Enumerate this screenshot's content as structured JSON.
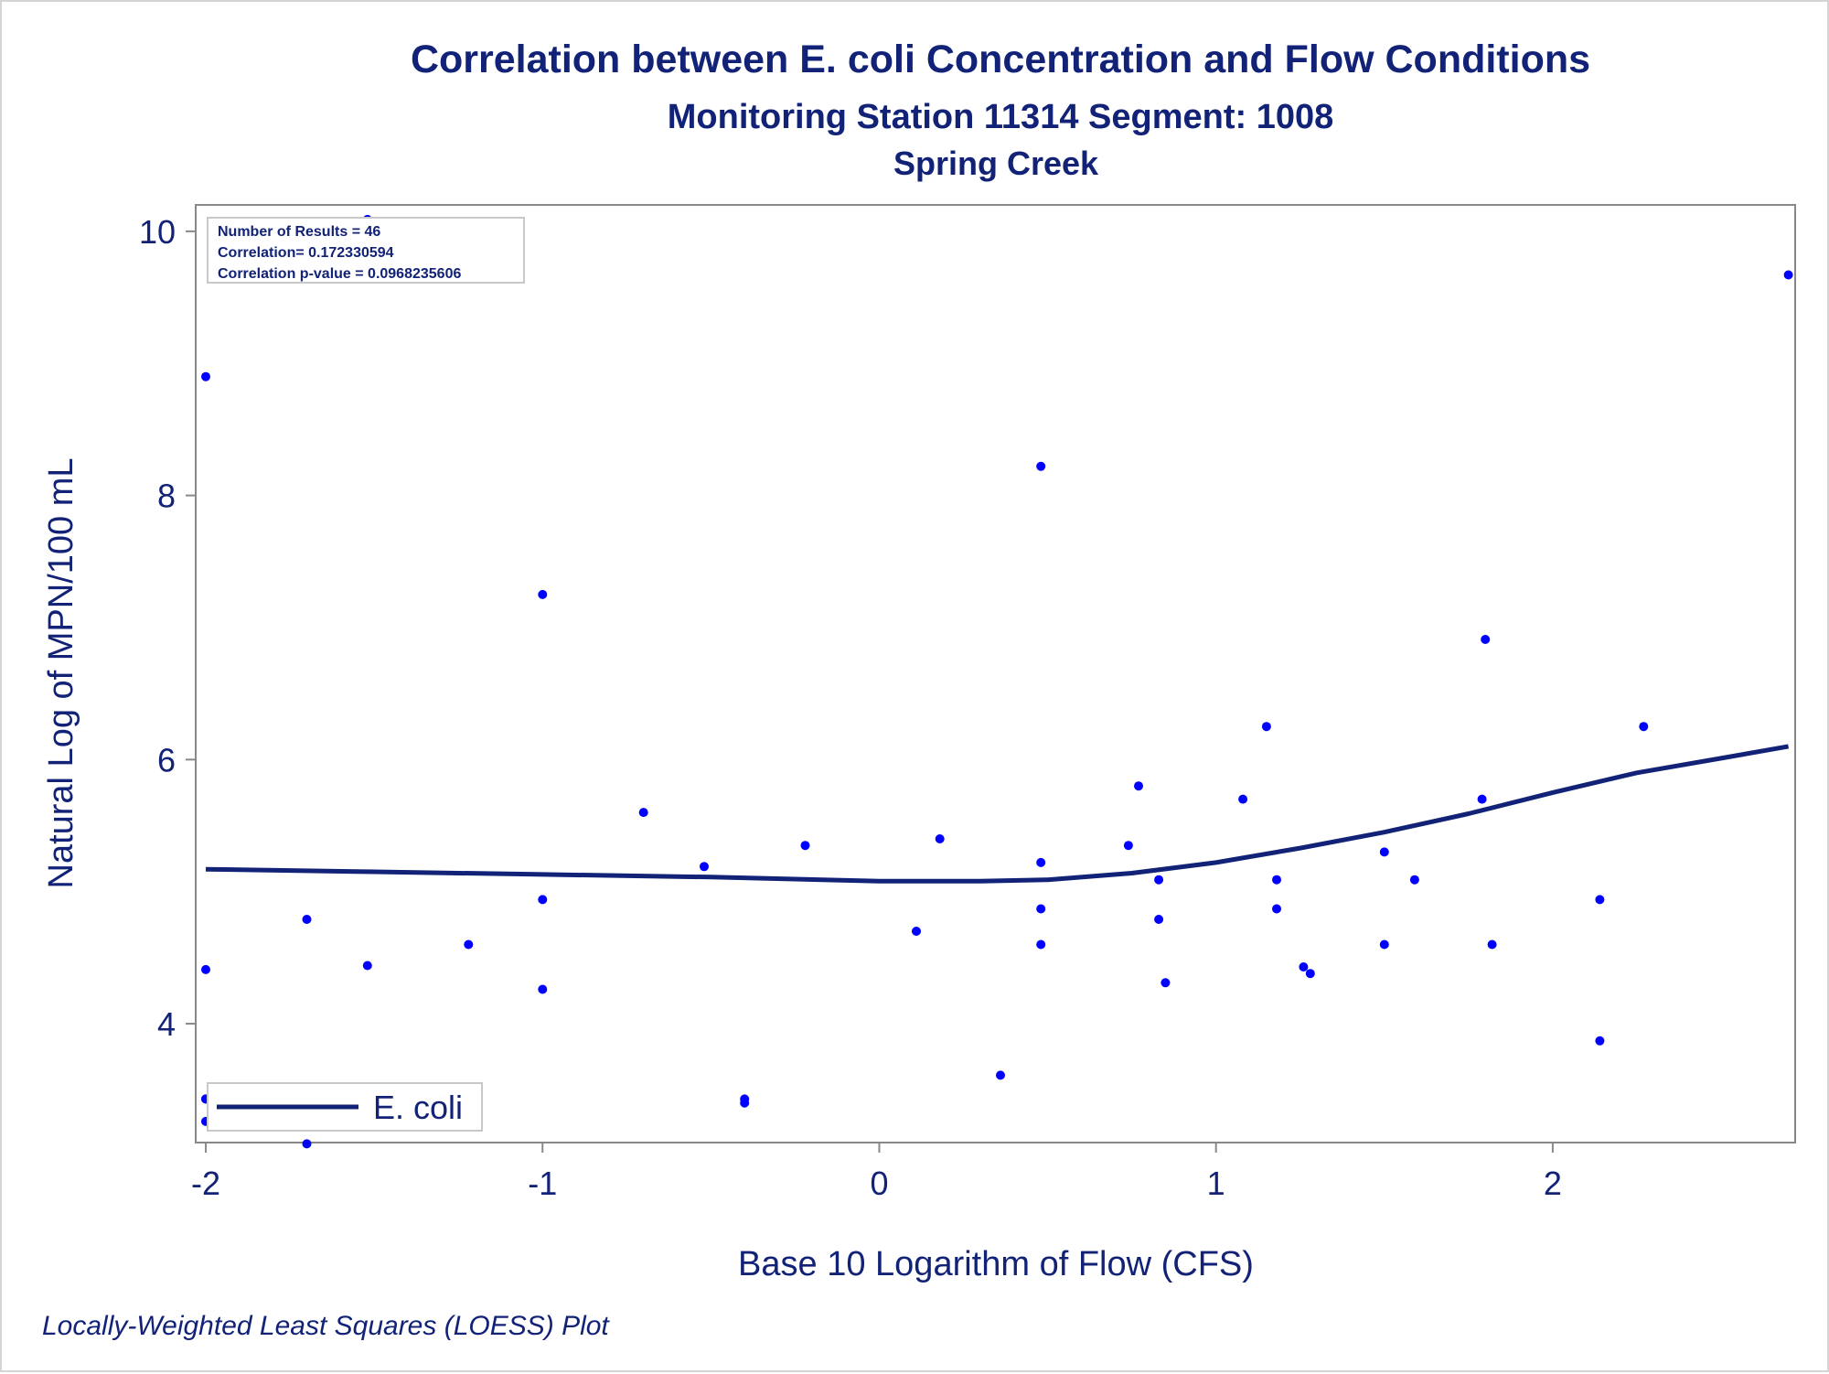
{
  "chart_data": {
    "type": "scatter",
    "title": "Correlation between E. coli Concentration and Flow Conditions",
    "subtitle": "Monitoring Station 11314 Segment: 1008",
    "subtitle2": "Spring Creek",
    "xlabel": "Base 10 Logarithm of Flow (CFS)",
    "ylabel": "Natural Log of MPN/100 mL",
    "footnote": "Locally-Weighted Least Squares (LOESS) Plot",
    "xlim": [
      -2.03,
      2.72
    ],
    "ylim": [
      3.1,
      10.2
    ],
    "x_ticks": [
      -2,
      -1,
      0,
      1,
      2
    ],
    "x_tick_labels": [
      "-2",
      "-1",
      "0",
      "1",
      "2"
    ],
    "y_ticks": [
      4,
      6,
      8,
      10
    ],
    "y_tick_labels": [
      "4",
      "6",
      "8",
      "10"
    ],
    "grid": false,
    "legend_position": "bottom-left",
    "stats_position": "top-left",
    "stats": [
      "Number of Results = 46",
      "Correlation= 0.172330594",
      "Correlation p-value = 0.0968235606"
    ],
    "colors": {
      "points": "#0000ff",
      "line": "#112277",
      "text": "#112277",
      "frame": "#888888"
    },
    "series": [
      {
        "kind": "scatter",
        "points": [
          [
            -2.0,
            8.9
          ],
          [
            -2.0,
            4.41
          ],
          [
            -2.0,
            3.43
          ],
          [
            -2.0,
            3.26
          ],
          [
            -1.7,
            4.79
          ],
          [
            -1.7,
            3.09
          ],
          [
            -1.52,
            10.09
          ],
          [
            -1.52,
            4.44
          ],
          [
            -1.22,
            4.6
          ],
          [
            -1.0,
            7.25
          ],
          [
            -1.0,
            4.94
          ],
          [
            -1.0,
            4.26
          ],
          [
            -0.7,
            5.6
          ],
          [
            -0.52,
            5.19
          ],
          [
            -0.4,
            3.43
          ],
          [
            -0.4,
            3.4
          ],
          [
            -0.22,
            5.35
          ],
          [
            0.11,
            4.7
          ],
          [
            0.18,
            5.4
          ],
          [
            0.36,
            3.61
          ],
          [
            0.48,
            8.22
          ],
          [
            0.48,
            5.22
          ],
          [
            0.48,
            4.87
          ],
          [
            0.48,
            4.6
          ],
          [
            0.74,
            5.35
          ],
          [
            0.77,
            5.8
          ],
          [
            0.83,
            5.09
          ],
          [
            0.83,
            4.79
          ],
          [
            0.85,
            4.31
          ],
          [
            1.08,
            5.7
          ],
          [
            1.15,
            6.25
          ],
          [
            1.18,
            5.09
          ],
          [
            1.18,
            4.87
          ],
          [
            1.26,
            4.43
          ],
          [
            1.28,
            4.38
          ],
          [
            1.5,
            5.3
          ],
          [
            1.5,
            4.6
          ],
          [
            1.59,
            5.09
          ],
          [
            1.79,
            5.7
          ],
          [
            1.8,
            6.91
          ],
          [
            1.82,
            4.6
          ],
          [
            2.14,
            4.94
          ],
          [
            2.14,
            3.87
          ],
          [
            2.27,
            6.25
          ],
          [
            2.7,
            9.67
          ],
          [
            -2.0,
            3.43
          ]
        ]
      },
      {
        "kind": "line",
        "name": "E. coli",
        "points": [
          [
            -2.0,
            5.17
          ],
          [
            -1.5,
            5.15
          ],
          [
            -1.0,
            5.13
          ],
          [
            -0.5,
            5.11
          ],
          [
            0.0,
            5.08
          ],
          [
            0.3,
            5.08
          ],
          [
            0.5,
            5.09
          ],
          [
            0.75,
            5.14
          ],
          [
            1.0,
            5.22
          ],
          [
            1.25,
            5.33
          ],
          [
            1.5,
            5.45
          ],
          [
            1.75,
            5.59
          ],
          [
            2.0,
            5.75
          ],
          [
            2.25,
            5.9
          ],
          [
            2.5,
            6.01
          ],
          [
            2.7,
            6.1
          ]
        ]
      }
    ]
  }
}
